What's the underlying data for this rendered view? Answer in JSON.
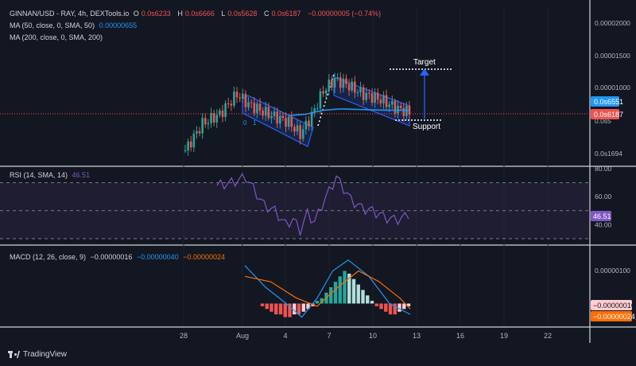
{
  "legend": {
    "symbol": "GINNAN/USD - RAY, 4h, DEXTools.io",
    "o_label": "O",
    "o": "0.0s6233",
    "h_label": "H",
    "h": "0.0s6666",
    "l_label": "L",
    "l": "0.0s5628",
    "c_label": "C",
    "c": "0.0s6187",
    "change": "−0.00000005 (−0.74%)",
    "ma50_label": "MA (50, close, 0, SMA, 50)",
    "ma50_value": "0.00000655",
    "ma200_label": "MA (200, close, 0, SMA, 200)",
    "rsi_label": "RSI (14, SMA, 14)",
    "rsi_value": "46.51",
    "macd_label": "MACD (12, 26, close, 9)",
    "macd_v1": "−0.00000016",
    "macd_v2": "−0.00000040",
    "macd_v3": "−0.00000024"
  },
  "brand": "TradingView",
  "colors": {
    "background": "#131722",
    "up": "#26a69a",
    "down": "#ef5350",
    "ma": "#2196f3",
    "channel": "#2962ff",
    "rsi": "#7e57c2",
    "macd": "#2196f3",
    "signal": "#ff6d00"
  },
  "chart_data": [
    {
      "type": "candlestick",
      "title": "GINNAN/USD - RAY, 4h, DEXTools.io",
      "x_ticks": [
        "28",
        "Aug",
        "4",
        "7",
        "10",
        "13",
        "16",
        "19",
        "22"
      ],
      "y_ticks": [
        "0.00002000",
        "0.00001500",
        "0.00001000",
        "0.0s5",
        "0.0s1694"
      ],
      "ylim": [
        6e-07,
        2.05e-05
      ],
      "price_tags": {
        "ma50": "0.0s6551",
        "close": "0.0s6187"
      },
      "annotations": [
        "Target",
        "Support",
        "0",
        "1"
      ],
      "close_path": [
        [
          0,
          6e-07
        ],
        [
          6,
          4.6e-06
        ],
        [
          12,
          6e-06
        ],
        [
          18,
          9e-06
        ],
        [
          22,
          7.5e-06
        ],
        [
          28,
          6.2e-06
        ],
        [
          36,
          4.8e-06
        ],
        [
          40,
          3e-06
        ],
        [
          44,
          5.8e-06
        ],
        [
          48,
          9.5e-06
        ],
        [
          52,
          1.12e-05
        ],
        [
          56,
          1.05e-05
        ],
        [
          62,
          9e-06
        ],
        [
          68,
          8.2e-06
        ],
        [
          74,
          6.8e-06
        ],
        [
          78,
          6.3e-06
        ]
      ],
      "ma50_path": [
        [
          36,
          5.8e-06
        ],
        [
          42,
          6e-06
        ],
        [
          48,
          6.6e-06
        ],
        [
          54,
          6.8e-06
        ],
        [
          62,
          6.7e-06
        ],
        [
          70,
          6.6e-06
        ],
        [
          78,
          6.6e-06
        ]
      ],
      "n_candles": 79
    },
    {
      "type": "line",
      "title": "RSI (14, SMA, 14)",
      "y_ticks": [
        "80.00",
        "60.00",
        "40.00"
      ],
      "ylim": [
        30,
        80
      ],
      "last": "46.51",
      "rsi": [
        [
          0,
          68
        ],
        [
          4,
          70
        ],
        [
          8,
          74
        ],
        [
          10,
          66
        ],
        [
          13,
          54
        ],
        [
          16,
          50
        ],
        [
          19,
          40
        ],
        [
          21,
          44
        ],
        [
          23,
          36
        ],
        [
          25,
          48
        ],
        [
          27,
          42
        ],
        [
          29,
          54
        ],
        [
          31,
          64
        ],
        [
          33,
          74
        ],
        [
          35,
          66
        ],
        [
          37,
          58
        ],
        [
          40,
          52
        ],
        [
          43,
          50
        ],
        [
          46,
          46
        ],
        [
          48,
          44
        ],
        [
          51,
          44
        ],
        [
          53,
          48
        ]
      ],
      "rsi_ma": [
        [
          0,
          68
        ],
        [
          8,
          68
        ],
        [
          14,
          60
        ],
        [
          20,
          50
        ],
        [
          26,
          46
        ],
        [
          32,
          52
        ],
        [
          38,
          60
        ],
        [
          44,
          54
        ],
        [
          50,
          48
        ],
        [
          53,
          47
        ]
      ]
    },
    {
      "type": "bar",
      "title": "MACD (12, 26, close, 9)",
      "y_ticks": [
        "0.00000100"
      ],
      "ylim": [
        -6e-07,
        1.8e-06
      ],
      "tags": {
        "histogram": "−0.00000016",
        "signal": "−0.00000024"
      },
      "histogram": [
        -1e-07,
        -2e-07,
        -3e-07,
        -4e-07,
        -4e-07,
        -5e-07,
        -5e-07,
        -4e-07,
        -4e-07,
        -3e-07,
        -2e-07,
        -1e-07,
        1e-07,
        2e-07,
        4e-07,
        6e-07,
        8e-07,
        1e-06,
        1.2e-06,
        1.1e-06,
        9e-07,
        7e-07,
        5e-07,
        3e-07,
        1e-07,
        -1e-07,
        -2e-07,
        -3e-07,
        -4e-07,
        -4e-07,
        -3e-07,
        -2e-07,
        -1e-07
      ],
      "macd": [
        [
          0,
          1.4e-06
        ],
        [
          4,
          6e-07
        ],
        [
          8,
          0.0
        ],
        [
          11,
          -5e-07
        ],
        [
          14,
          2e-07
        ],
        [
          17,
          1.2e-06
        ],
        [
          20,
          1.6e-06
        ],
        [
          24,
          1e-06
        ],
        [
          28,
          0.0
        ],
        [
          32,
          -4e-07
        ]
      ],
      "signal": [
        [
          0,
          1e-06
        ],
        [
          5,
          8e-07
        ],
        [
          10,
          2e-07
        ],
        [
          14,
          -1e-07
        ],
        [
          18,
          6e-07
        ],
        [
          22,
          1.2e-06
        ],
        [
          26,
          8e-07
        ],
        [
          30,
          2e-07
        ],
        [
          32,
          -2e-07
        ]
      ]
    }
  ]
}
